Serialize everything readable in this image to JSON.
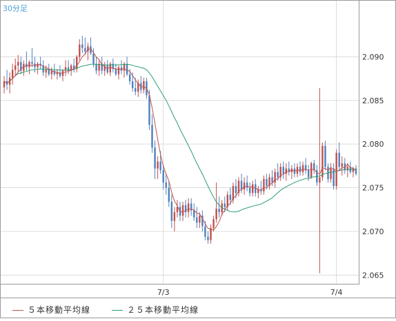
{
  "header": {
    "timeframe_label": "30分足"
  },
  "legend": {
    "ma5": {
      "label": "５本移動平均線",
      "color": "#c0504d"
    },
    "ma25": {
      "label": "２５本移動平均線",
      "color": "#2a9d6f"
    }
  },
  "colors": {
    "up": "#c0504d",
    "down": "#4f81bd",
    "grid": "#dcdcdc",
    "frame": "#999999"
  },
  "chart_data": {
    "type": "candlestick",
    "y_ticks": [
      "2.065",
      "2.070",
      "2.075",
      "2.080",
      "2.085",
      "2.090"
    ],
    "x_ticks": [
      {
        "label": "7/3",
        "index": 57
      },
      {
        "label": "7/4",
        "index": 119
      }
    ],
    "ylim": [
      2.064,
      2.0965
    ],
    "grid": true,
    "candles": [
      [
        2.0865,
        2.0878,
        2.0858,
        2.0872
      ],
      [
        2.0872,
        2.0885,
        2.0862,
        2.0868
      ],
      [
        2.0868,
        2.0882,
        2.0858,
        2.0876
      ],
      [
        2.0876,
        2.0892,
        2.0868,
        2.0885
      ],
      [
        2.0885,
        2.0898,
        2.0878,
        2.089
      ],
      [
        2.089,
        2.0902,
        2.0882,
        2.0894
      ],
      [
        2.0894,
        2.09,
        2.088,
        2.0884
      ],
      [
        2.0884,
        2.0896,
        2.0878,
        2.0892
      ],
      [
        2.0892,
        2.0906,
        2.0884,
        2.0888
      ],
      [
        2.0888,
        2.0896,
        2.088,
        2.0894
      ],
      [
        2.0894,
        2.091,
        2.0888,
        2.0892
      ],
      [
        2.0892,
        2.09,
        2.0882,
        2.0888
      ],
      [
        2.0888,
        2.0894,
        2.088,
        2.0892
      ],
      [
        2.0892,
        2.09,
        2.0886,
        2.089
      ],
      [
        2.089,
        2.0896,
        2.0878,
        2.0882
      ],
      [
        2.0882,
        2.089,
        2.0876,
        2.0886
      ],
      [
        2.0886,
        2.0892,
        2.0878,
        2.088
      ],
      [
        2.088,
        2.0888,
        2.0874,
        2.0884
      ],
      [
        2.0884,
        2.0892,
        2.0878,
        2.088
      ],
      [
        2.088,
        2.0886,
        2.0874,
        2.0882
      ],
      [
        2.0882,
        2.089,
        2.0876,
        2.0878
      ],
      [
        2.0878,
        2.0886,
        2.0872,
        2.0884
      ],
      [
        2.0884,
        2.0896,
        2.0878,
        2.0888
      ],
      [
        2.0888,
        2.0896,
        2.088,
        2.0884
      ],
      [
        2.0884,
        2.0892,
        2.0878,
        2.089
      ],
      [
        2.089,
        2.0898,
        2.0882,
        2.0886
      ],
      [
        2.0886,
        2.0902,
        2.0882,
        2.09
      ],
      [
        2.09,
        2.092,
        2.0896,
        2.0914
      ],
      [
        2.0914,
        2.0924,
        2.0904,
        2.091
      ],
      [
        2.091,
        2.0922,
        2.0902,
        2.0906
      ],
      [
        2.0906,
        2.0916,
        2.0896,
        2.0912
      ],
      [
        2.0912,
        2.0922,
        2.0902,
        2.0904
      ],
      [
        2.0904,
        2.091,
        2.0888,
        2.0892
      ],
      [
        2.0892,
        2.09,
        2.088,
        2.0884
      ],
      [
        2.0884,
        2.0896,
        2.0878,
        2.0892
      ],
      [
        2.0892,
        2.09,
        2.088,
        2.0884
      ],
      [
        2.0884,
        2.0894,
        2.0878,
        2.089
      ],
      [
        2.089,
        2.0896,
        2.088,
        2.0882
      ],
      [
        2.0882,
        2.0894,
        2.0878,
        2.0892
      ],
      [
        2.0892,
        2.0898,
        2.0882,
        2.0886
      ],
      [
        2.0886,
        2.0892,
        2.0878,
        2.088
      ],
      [
        2.088,
        2.089,
        2.0874,
        2.0888
      ],
      [
        2.0888,
        2.0896,
        2.088,
        2.0884
      ],
      [
        2.0884,
        2.0894,
        2.0876,
        2.0892
      ],
      [
        2.0892,
        2.09,
        2.0878,
        2.088
      ],
      [
        2.088,
        2.0886,
        2.0868,
        2.0872
      ],
      [
        2.0872,
        2.0882,
        2.086,
        2.0864
      ],
      [
        2.0864,
        2.0876,
        2.0856,
        2.086
      ],
      [
        2.086,
        2.0874,
        2.0854,
        2.087
      ],
      [
        2.087,
        2.0878,
        2.0858,
        2.0862
      ],
      [
        2.0862,
        2.0876,
        2.0858,
        2.0872
      ],
      [
        2.0872,
        2.0876,
        2.0852,
        2.0856
      ],
      [
        2.0856,
        2.0862,
        2.0816,
        2.0822
      ],
      [
        2.0822,
        2.0834,
        2.079,
        2.0796
      ],
      [
        2.0796,
        2.0804,
        2.076,
        2.0772
      ],
      [
        2.0772,
        2.0786,
        2.076,
        2.078
      ],
      [
        2.078,
        2.0792,
        2.0766,
        2.077
      ],
      [
        2.077,
        2.0776,
        2.0748,
        2.0756
      ],
      [
        2.0756,
        2.0766,
        2.0742,
        2.075
      ],
      [
        2.075,
        2.0758,
        2.0728,
        2.0734
      ],
      [
        2.0734,
        2.0742,
        2.0704,
        2.0712
      ],
      [
        2.0712,
        2.0728,
        2.07,
        2.0722
      ],
      [
        2.0722,
        2.0736,
        2.0716,
        2.0728
      ],
      [
        2.0728,
        2.0734,
        2.0712,
        2.0718
      ],
      [
        2.0718,
        2.0734,
        2.0712,
        2.073
      ],
      [
        2.073,
        2.0736,
        2.0716,
        2.0722
      ],
      [
        2.0722,
        2.0738,
        2.0716,
        2.0732
      ],
      [
        2.0732,
        2.0738,
        2.0718,
        2.0724
      ],
      [
        2.0724,
        2.0732,
        2.0712,
        2.0716
      ],
      [
        2.0716,
        2.0728,
        2.0704,
        2.071
      ],
      [
        2.071,
        2.0722,
        2.0704,
        2.0718
      ],
      [
        2.0718,
        2.0724,
        2.07,
        2.0706
      ],
      [
        2.0706,
        2.0712,
        2.069,
        2.0694
      ],
      [
        2.0694,
        2.07,
        2.0686,
        2.069
      ],
      [
        2.069,
        2.0708,
        2.0686,
        2.0704
      ],
      [
        2.0704,
        2.0718,
        2.07,
        2.0714
      ],
      [
        2.0714,
        2.0756,
        2.071,
        2.0726
      ],
      [
        2.0726,
        2.074,
        2.0716,
        2.0722
      ],
      [
        2.0722,
        2.0736,
        2.0718,
        2.0732
      ],
      [
        2.0732,
        2.074,
        2.0722,
        2.0728
      ],
      [
        2.0728,
        2.0746,
        2.0724,
        2.0742
      ],
      [
        2.0742,
        2.075,
        2.073,
        2.0736
      ],
      [
        2.0736,
        2.0756,
        2.0732,
        2.0752
      ],
      [
        2.0752,
        2.076,
        2.0738,
        2.0744
      ],
      [
        2.0744,
        2.0762,
        2.074,
        2.0758
      ],
      [
        2.0758,
        2.0766,
        2.0744,
        2.0748
      ],
      [
        2.0748,
        2.0762,
        2.0742,
        2.0756
      ],
      [
        2.0756,
        2.0764,
        2.0746,
        2.075
      ],
      [
        2.075,
        2.0756,
        2.074,
        2.0744
      ],
      [
        2.0744,
        2.0758,
        2.074,
        2.0754
      ],
      [
        2.0754,
        2.076,
        2.074,
        2.0744
      ],
      [
        2.0744,
        2.0752,
        2.0738,
        2.0748
      ],
      [
        2.0748,
        2.0758,
        2.0742,
        2.0746
      ],
      [
        2.0746,
        2.0764,
        2.0742,
        2.076
      ],
      [
        2.076,
        2.0766,
        2.0748,
        2.0752
      ],
      [
        2.0752,
        2.0766,
        2.0748,
        2.0762
      ],
      [
        2.0762,
        2.077,
        2.0752,
        2.0756
      ],
      [
        2.0756,
        2.0772,
        2.075,
        2.0768
      ],
      [
        2.0768,
        2.0778,
        2.0758,
        2.0762
      ],
      [
        2.0762,
        2.0778,
        2.0758,
        2.0774
      ],
      [
        2.0774,
        2.078,
        2.076,
        2.0766
      ],
      [
        2.0766,
        2.0778,
        2.0758,
        2.0772
      ],
      [
        2.0772,
        2.078,
        2.0764,
        2.0768
      ],
      [
        2.0768,
        2.0776,
        2.076,
        2.0772
      ],
      [
        2.0772,
        2.0778,
        2.0762,
        2.0766
      ],
      [
        2.0766,
        2.0778,
        2.0762,
        2.0774
      ],
      [
        2.0774,
        2.078,
        2.0764,
        2.0768
      ],
      [
        2.0768,
        2.078,
        2.0764,
        2.0776
      ],
      [
        2.0776,
        2.0784,
        2.0766,
        2.077
      ],
      [
        2.077,
        2.0776,
        2.0758,
        2.0762
      ],
      [
        2.0762,
        2.078,
        2.076,
        2.0778
      ],
      [
        2.0778,
        2.0782,
        2.0766,
        2.077
      ],
      [
        2.077,
        2.0776,
        2.0752,
        2.0756
      ],
      [
        2.0756,
        2.0864,
        2.0652,
        2.0762
      ],
      [
        2.0762,
        2.0802,
        2.0758,
        2.0798
      ],
      [
        2.0798,
        2.0804,
        2.077,
        2.0774
      ],
      [
        2.0774,
        2.0778,
        2.0756,
        2.076
      ],
      [
        2.076,
        2.0778,
        2.0756,
        2.0772
      ],
      [
        2.0772,
        2.0778,
        2.0748,
        2.0752
      ],
      [
        2.0752,
        2.0794,
        2.0748,
        2.079
      ],
      [
        2.079,
        2.0802,
        2.077,
        2.0774
      ],
      [
        2.0774,
        2.0786,
        2.0764,
        2.0778
      ],
      [
        2.0778,
        2.0784,
        2.0766,
        2.077
      ],
      [
        2.077,
        2.0778,
        2.0762,
        2.0774
      ],
      [
        2.0774,
        2.078,
        2.0766,
        2.0768
      ],
      [
        2.0768,
        2.0774,
        2.0762,
        2.0772
      ],
      [
        2.0772,
        2.0776,
        2.0764,
        2.0766
      ]
    ]
  }
}
